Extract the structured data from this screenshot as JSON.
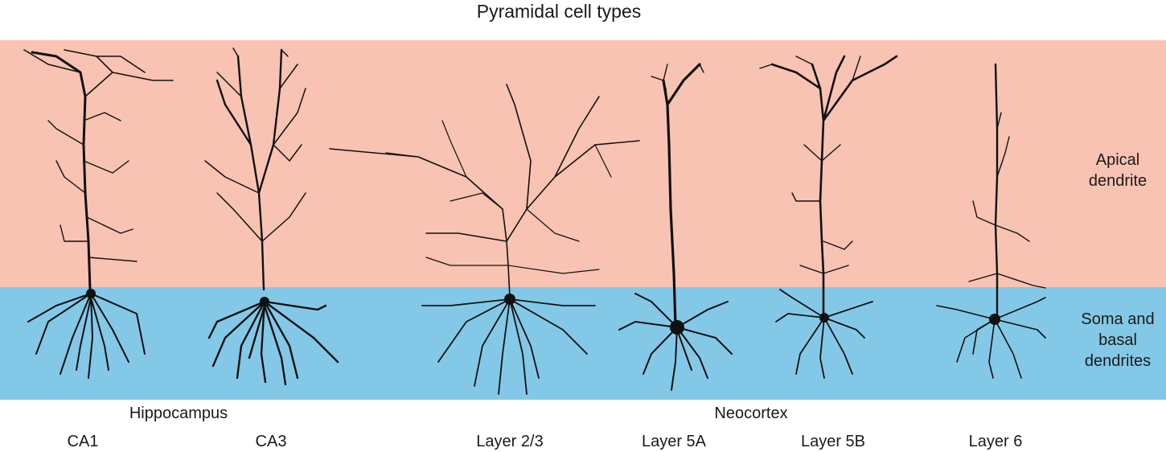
{
  "figure": {
    "title": "Pyramidal cell types",
    "layers": {
      "apical": "Apical dendrite",
      "soma": "Soma and basal dendrites"
    },
    "regions": {
      "hippocampus": "Hippocampus",
      "neocortex": "Neocortex"
    },
    "cells": [
      {
        "label": "CA1"
      },
      {
        "label": "CA3"
      },
      {
        "label": "Layer 2/3"
      },
      {
        "label": "Layer 5A"
      },
      {
        "label": "Layer 5B"
      },
      {
        "label": "Layer 6"
      }
    ],
    "colors": {
      "apical_band": "#f8c3b2",
      "soma_band": "#84c8e7",
      "neuron": "#111111"
    }
  }
}
